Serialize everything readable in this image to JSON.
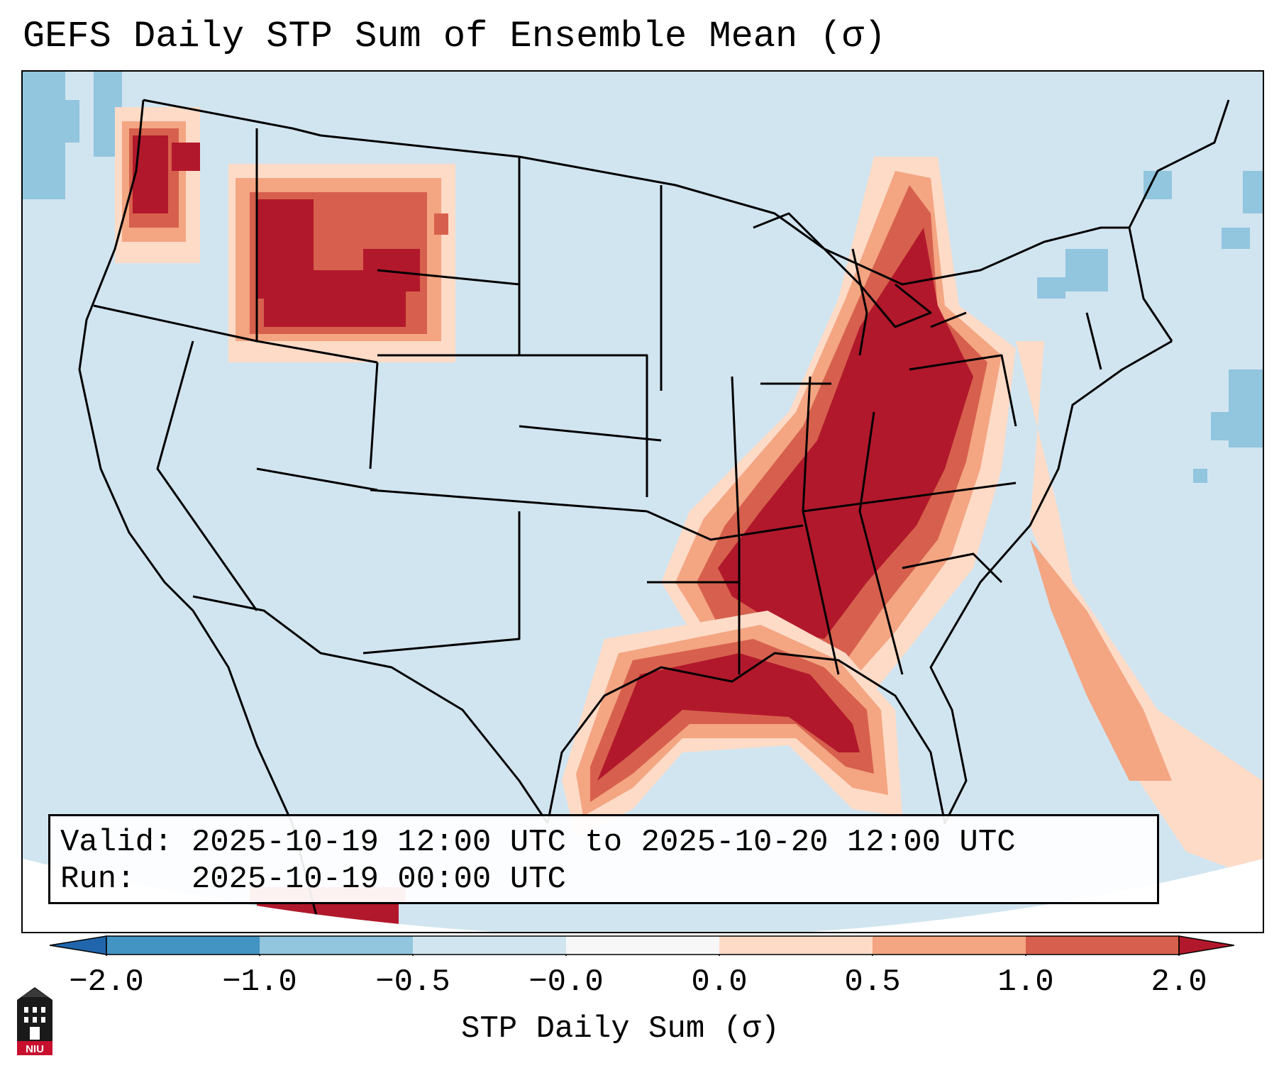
{
  "title": "GEFS Daily STP Sum of Ensemble Mean (σ)",
  "info": {
    "valid_label": "Valid:",
    "valid_value": "2025-10-19 12:00 UTC to 2025-10-20 12:00 UTC",
    "run_label": "Run:",
    "run_value": "2025-10-19 00:00 UTC"
  },
  "colorbar": {
    "label": "STP Daily Sum (σ)",
    "ticks": [
      "−2.0",
      "−1.0",
      "−0.5",
      "−0.0",
      "0.0",
      "0.5",
      "1.0",
      "2.0"
    ],
    "colors": {
      "below": "#2166ac",
      "neg_2_to_1": "#4393c3",
      "neg_1_to_05": "#92c5de",
      "neg_05_to_0": "#d1e5f0",
      "zero_band": "#f7f7f7",
      "pos_0_to_05": "#fddbc7",
      "pos_05_to_1": "#f4a582",
      "pos_1_to_2": "#d6604d",
      "above": "#b2182b"
    }
  },
  "map": {
    "region": "Contiguous United States",
    "background_color": "#d1e5f0",
    "border_color": "#000000"
  },
  "logo": {
    "text": "NIU",
    "name": "northern-illinois-university-logo"
  }
}
